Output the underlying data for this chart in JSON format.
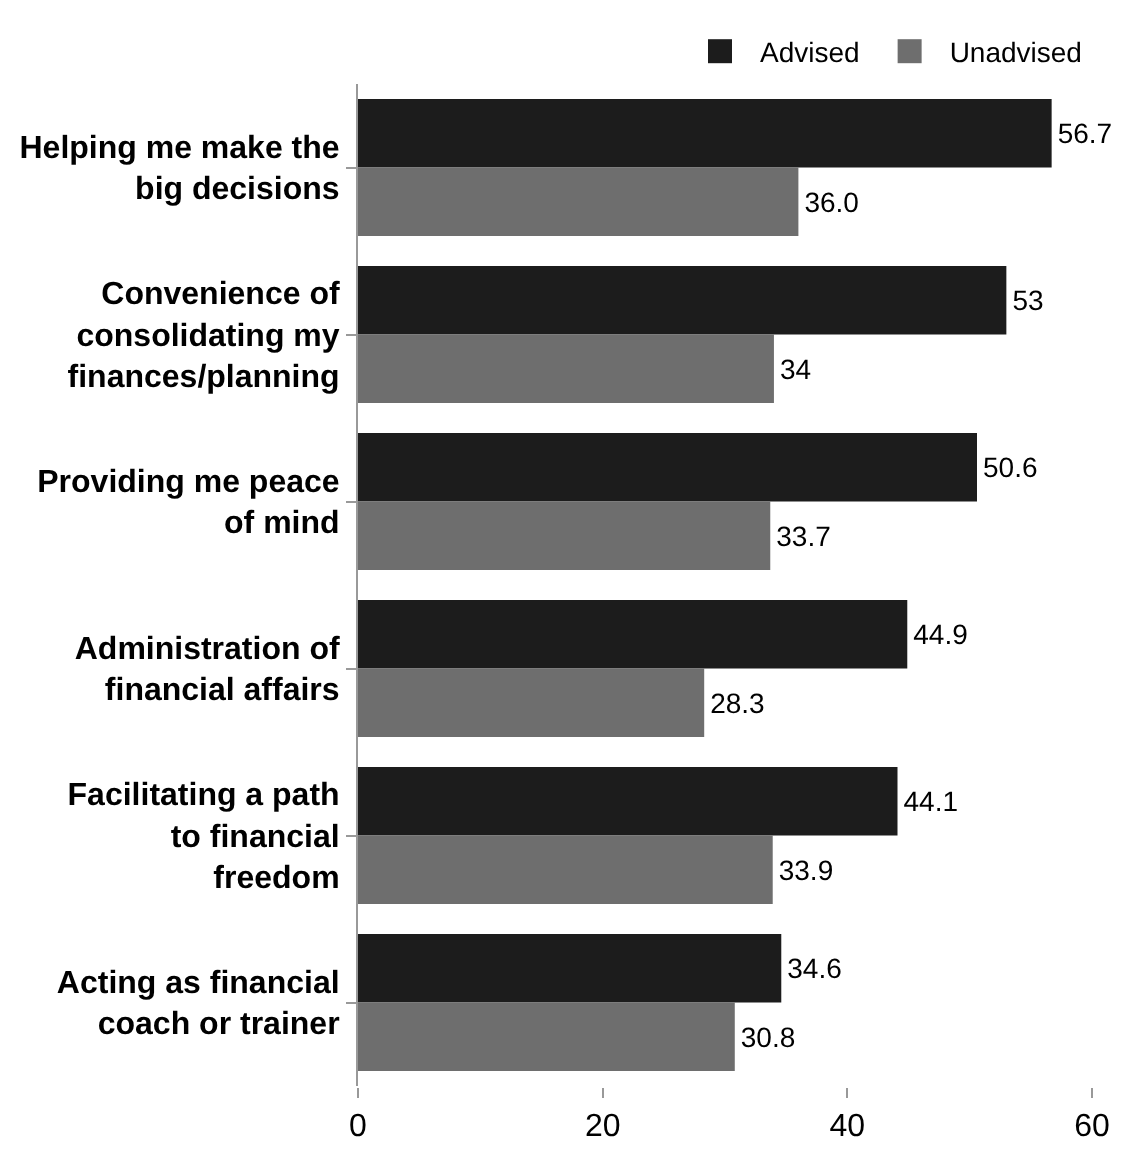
{
  "chart_data": {
    "type": "bar",
    "orientation": "horizontal",
    "categories": [
      "Helping me make the big decisions",
      "Convenience of consolidating my finances/planning",
      "Providing me peace of mind",
      "Administration of financial affairs",
      "Facilitating a path to financial freedom",
      "Acting as financial coach or trainer"
    ],
    "series": [
      {
        "name": "Advised",
        "color": "#1c1c1c",
        "values": [
          56.7,
          53,
          50.6,
          44.9,
          44.1,
          34.6
        ],
        "value_labels": [
          "56.7",
          "53",
          "50.6",
          "44.9",
          "44.1",
          "34.6"
        ]
      },
      {
        "name": "Unadvised",
        "color": "#6e6e6e",
        "values": [
          36.0,
          34,
          33.7,
          28.3,
          33.9,
          30.8
        ],
        "value_labels": [
          "36.0",
          "34",
          "33.7",
          "28.3",
          "33.9",
          "30.8"
        ]
      }
    ],
    "xlim": [
      0,
      60
    ],
    "xticks": [
      0,
      20,
      40,
      60
    ],
    "grid": false,
    "legend": "top right"
  }
}
